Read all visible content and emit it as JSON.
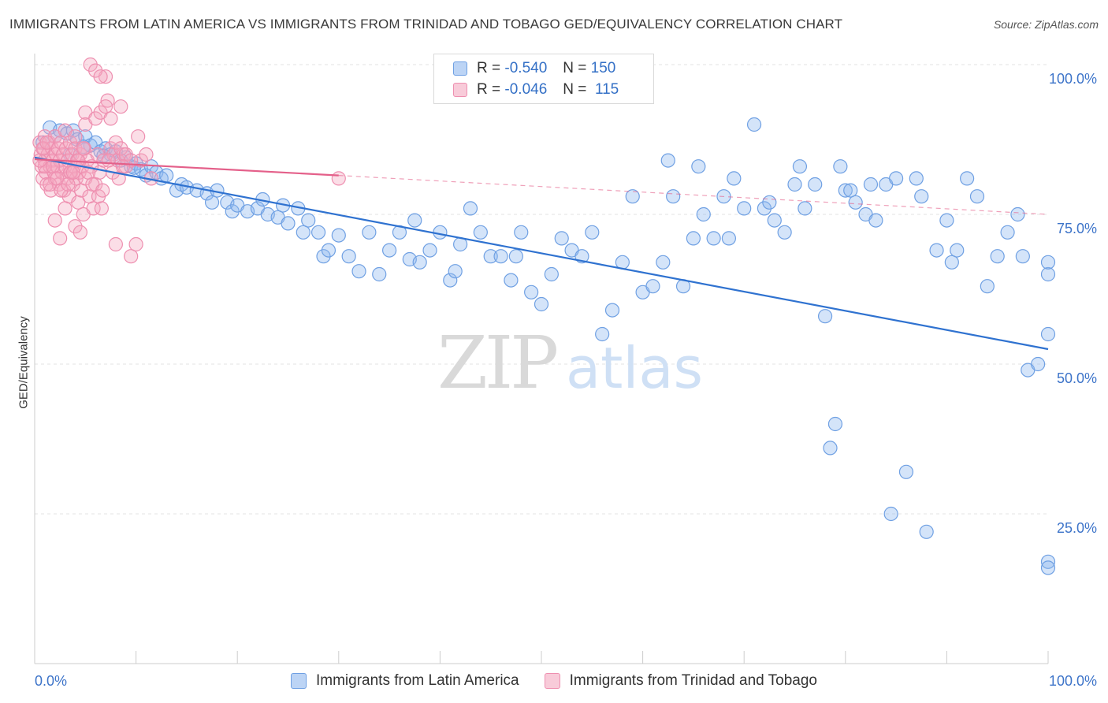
{
  "header": {
    "title": "IMMIGRANTS FROM LATIN AMERICA VS IMMIGRANTS FROM TRINIDAD AND TOBAGO GED/EQUIVALENCY CORRELATION CHART",
    "source": "Source: ZipAtlas.com"
  },
  "watermark": {
    "zip": "ZIP",
    "atlas": "atlas"
  },
  "legend_top": {
    "rows": [
      {
        "r_label": "R =",
        "r_value": "-0.540",
        "n_label": "N =",
        "n_value": "150",
        "color": "#8fb8ee"
      },
      {
        "r_label": "R =",
        "r_value": "-0.046",
        "n_label": "N =",
        "n_value": "115",
        "color": "#f4a8c0"
      }
    ]
  },
  "chart_data": {
    "type": "scatter",
    "title": "IMMIGRANTS FROM LATIN AMERICA VS IMMIGRANTS FROM TRINIDAD AND TOBAGO GED/EQUIVALENCY CORRELATION CHART",
    "xlabel": "",
    "ylabel": "GED/Equivalency",
    "xlim": [
      0,
      100
    ],
    "ylim": [
      0,
      100
    ],
    "x_tick_labels": [
      "0.0%",
      "100.0%"
    ],
    "y_tick_labels": [
      "100.0%",
      "75.0%",
      "50.0%",
      "25.0%"
    ],
    "y_ticks": [
      100,
      75,
      50,
      25
    ],
    "grid": "horizontal-dashed",
    "legend": "bottom-center",
    "series": [
      {
        "name": "Immigrants from Latin America",
        "color": "#8fb8ee",
        "line_color": "#2f72d0",
        "trend": [
          [
            0,
            84.5
          ],
          [
            100,
            52.5
          ]
        ],
        "trend_dashed_to": null,
        "points": [
          [
            0.8,
            87
          ],
          [
            1.5,
            89.5
          ],
          [
            2,
            88
          ],
          [
            2.5,
            89
          ],
          [
            3.2,
            88.5
          ],
          [
            3.8,
            89
          ],
          [
            4.2,
            87.5
          ],
          [
            5,
            88
          ],
          [
            5.5,
            86.5
          ],
          [
            6,
            87
          ],
          [
            6.5,
            85.5
          ],
          [
            7,
            86
          ],
          [
            7.5,
            85
          ],
          [
            8,
            85.5
          ],
          [
            9,
            84.5
          ],
          [
            9.5,
            83
          ],
          [
            10,
            83.5
          ],
          [
            10.5,
            82.5
          ],
          [
            11,
            81.5
          ],
          [
            11.5,
            83
          ],
          [
            12,
            82
          ],
          [
            12.5,
            81
          ],
          [
            13,
            81.5
          ],
          [
            14,
            79
          ],
          [
            14.5,
            80
          ],
          [
            15,
            79.5
          ],
          [
            16,
            79
          ],
          [
            17,
            78.5
          ],
          [
            17.5,
            77
          ],
          [
            18,
            79
          ],
          [
            19,
            77
          ],
          [
            19.5,
            75.5
          ],
          [
            20,
            76.5
          ],
          [
            21,
            75.5
          ],
          [
            22,
            76
          ],
          [
            22.5,
            77.5
          ],
          [
            23,
            75
          ],
          [
            24,
            74.5
          ],
          [
            24.5,
            76.5
          ],
          [
            25,
            73.5
          ],
          [
            26,
            76
          ],
          [
            26.5,
            72
          ],
          [
            27,
            74
          ],
          [
            28,
            72
          ],
          [
            28.5,
            68
          ],
          [
            29,
            69
          ],
          [
            30,
            71.5
          ],
          [
            31,
            68
          ],
          [
            32,
            65.5
          ],
          [
            33,
            72
          ],
          [
            34,
            65
          ],
          [
            35,
            69
          ],
          [
            36,
            72
          ],
          [
            37,
            67.5
          ],
          [
            37.5,
            74
          ],
          [
            38,
            67
          ],
          [
            39,
            69
          ],
          [
            40,
            72
          ],
          [
            41,
            64
          ],
          [
            41.5,
            65.5
          ],
          [
            42,
            70
          ],
          [
            43,
            76
          ],
          [
            44,
            72
          ],
          [
            45,
            68
          ],
          [
            46,
            68
          ],
          [
            47,
            64
          ],
          [
            47.5,
            68
          ],
          [
            48,
            72
          ],
          [
            49,
            62
          ],
          [
            50,
            60
          ],
          [
            51,
            65
          ],
          [
            52,
            71
          ],
          [
            53,
            69
          ],
          [
            54,
            68
          ],
          [
            55,
            72
          ],
          [
            56,
            55
          ],
          [
            57,
            59
          ],
          [
            58,
            67
          ],
          [
            59,
            78
          ],
          [
            60,
            62
          ],
          [
            61,
            63
          ],
          [
            62,
            67
          ],
          [
            62.5,
            84
          ],
          [
            63,
            78
          ],
          [
            64,
            63
          ],
          [
            65,
            71
          ],
          [
            65.5,
            83
          ],
          [
            66,
            75
          ],
          [
            67,
            71
          ],
          [
            68,
            78
          ],
          [
            68.5,
            71
          ],
          [
            69,
            81
          ],
          [
            70,
            76
          ],
          [
            71,
            90
          ],
          [
            72,
            76
          ],
          [
            72.5,
            77
          ],
          [
            73,
            74
          ],
          [
            74,
            72
          ],
          [
            75,
            80
          ],
          [
            75.5,
            83
          ],
          [
            76,
            76
          ],
          [
            77,
            80
          ],
          [
            78,
            58
          ],
          [
            78.5,
            36
          ],
          [
            79,
            40
          ],
          [
            79.5,
            83
          ],
          [
            80,
            79
          ],
          [
            80.5,
            79
          ],
          [
            81,
            77
          ],
          [
            82,
            75
          ],
          [
            82.5,
            80
          ],
          [
            83,
            74
          ],
          [
            84,
            80
          ],
          [
            84.5,
            25
          ],
          [
            85,
            81
          ],
          [
            86,
            32
          ],
          [
            87,
            81
          ],
          [
            87.5,
            78
          ],
          [
            88,
            22
          ],
          [
            89,
            69
          ],
          [
            90,
            74
          ],
          [
            90.5,
            67
          ],
          [
            91,
            69
          ],
          [
            92,
            81
          ],
          [
            93,
            78
          ],
          [
            94,
            63
          ],
          [
            95,
            68
          ],
          [
            96,
            72
          ],
          [
            97,
            75
          ],
          [
            97.5,
            68
          ],
          [
            98,
            49
          ],
          [
            99,
            50
          ],
          [
            100,
            65
          ],
          [
            100,
            17
          ],
          [
            100,
            16
          ],
          [
            100,
            55
          ],
          [
            100,
            67
          ],
          [
            3.5,
            85
          ],
          [
            4.8,
            86.3
          ],
          [
            6.8,
            84.8
          ],
          [
            8.5,
            84
          ],
          [
            9.8,
            82.8
          ]
        ]
      },
      {
        "name": "Immigrants from Trinidad and Tobago",
        "color": "#f4a8c0",
        "line_color": "#e4608a",
        "trend": [
          [
            0,
            84.2
          ],
          [
            30,
            81.5
          ]
        ],
        "trend_dashed_to": [
          100,
          75
        ],
        "points": [
          [
            0.5,
            87
          ],
          [
            0.6,
            85
          ],
          [
            0.7,
            83
          ],
          [
            0.8,
            81
          ],
          [
            0.9,
            86
          ],
          [
            1,
            84
          ],
          [
            1,
            88
          ],
          [
            1.1,
            82
          ],
          [
            1.2,
            80
          ],
          [
            1.3,
            85
          ],
          [
            1.4,
            87
          ],
          [
            1.5,
            83
          ],
          [
            1.6,
            79
          ],
          [
            1.7,
            86
          ],
          [
            1.8,
            84
          ],
          [
            1.9,
            82
          ],
          [
            2,
            88
          ],
          [
            2,
            81
          ],
          [
            2.1,
            85
          ],
          [
            2.2,
            83
          ],
          [
            2.3,
            86
          ],
          [
            2.4,
            80
          ],
          [
            2.5,
            84
          ],
          [
            2.6,
            87
          ],
          [
            2.7,
            82
          ],
          [
            2.8,
            85
          ],
          [
            2.9,
            79
          ],
          [
            3,
            83
          ],
          [
            3,
            76
          ],
          [
            3.1,
            86
          ],
          [
            3.2,
            81
          ],
          [
            3.3,
            84
          ],
          [
            3.4,
            78
          ],
          [
            3.5,
            87
          ],
          [
            3.6,
            82
          ],
          [
            3.7,
            85
          ],
          [
            3.8,
            80
          ],
          [
            3.9,
            83
          ],
          [
            4,
            86
          ],
          [
            4,
            73
          ],
          [
            4.1,
            81
          ],
          [
            4.2,
            84
          ],
          [
            4.3,
            77
          ],
          [
            4.4,
            82
          ],
          [
            4.5,
            85
          ],
          [
            4.6,
            79
          ],
          [
            4.7,
            83
          ],
          [
            4.8,
            75
          ],
          [
            4.9,
            86
          ],
          [
            5,
            81
          ],
          [
            5,
            92
          ],
          [
            5.2,
            84
          ],
          [
            5.4,
            78
          ],
          [
            5.6,
            83
          ],
          [
            5.8,
            76
          ],
          [
            6,
            80
          ],
          [
            6.2,
            85
          ],
          [
            6.4,
            82
          ],
          [
            6.6,
            76
          ],
          [
            6.8,
            84
          ],
          [
            7,
            98
          ],
          [
            7.2,
            94
          ],
          [
            7.5,
            86
          ],
          [
            7.8,
            85
          ],
          [
            8,
            70
          ],
          [
            8.2,
            84
          ],
          [
            8.5,
            93
          ],
          [
            8.8,
            85
          ],
          [
            9,
            83
          ],
          [
            9.5,
            68
          ],
          [
            10,
            70
          ],
          [
            10.2,
            88
          ],
          [
            10.5,
            84
          ],
          [
            11,
            85
          ],
          [
            11.5,
            81
          ],
          [
            5.5,
            100
          ],
          [
            6,
            99
          ],
          [
            6.5,
            98
          ],
          [
            3.5,
            82
          ],
          [
            4.5,
            72
          ],
          [
            2.5,
            71
          ],
          [
            2,
            74
          ],
          [
            1.5,
            80
          ],
          [
            1,
            83
          ],
          [
            3,
            89
          ],
          [
            4,
            88
          ],
          [
            5,
            90
          ],
          [
            6,
            91
          ],
          [
            6.5,
            92
          ],
          [
            7,
            93
          ],
          [
            7.5,
            91
          ],
          [
            8,
            87
          ],
          [
            8.5,
            86
          ],
          [
            9,
            85
          ],
          [
            9.5,
            84
          ],
          [
            30,
            81
          ],
          [
            0.5,
            84
          ],
          [
            0.8,
            86
          ],
          [
            1.2,
            87
          ],
          [
            1.8,
            83
          ],
          [
            2.2,
            81
          ],
          [
            2.6,
            79
          ],
          [
            3.3,
            80
          ],
          [
            3.8,
            82
          ],
          [
            4.3,
            84
          ],
          [
            4.8,
            86
          ],
          [
            5.3,
            82
          ],
          [
            5.7,
            80
          ],
          [
            6.3,
            78
          ],
          [
            6.7,
            79
          ],
          [
            7.3,
            84
          ],
          [
            7.7,
            82
          ],
          [
            8.3,
            81
          ],
          [
            8.7,
            83
          ]
        ]
      }
    ]
  },
  "bottom_legend": {
    "items": [
      {
        "label": "Immigrants from Latin America",
        "color": "#8fb8ee"
      },
      {
        "label": "Immigrants from Trinidad and Tobago",
        "color": "#f4a8c0"
      }
    ]
  }
}
